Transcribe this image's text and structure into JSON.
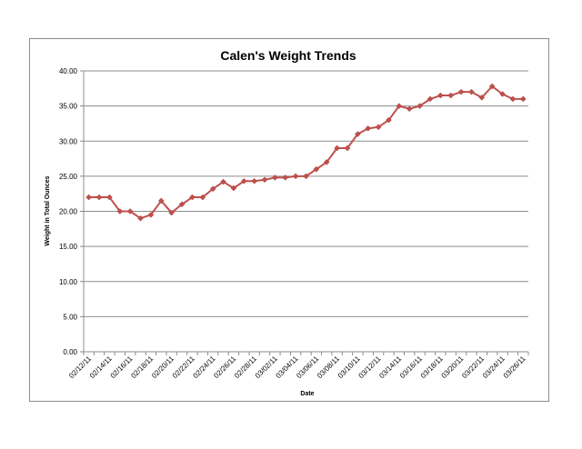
{
  "chart_data": {
    "type": "line",
    "title": "Calen's Weight Trends",
    "xlabel": "Date",
    "ylabel": "Weight in Total Ounces",
    "ylim": [
      0,
      40
    ],
    "yticks": [
      "0.00",
      "5.00",
      "10.00",
      "15.00",
      "20.00",
      "25.00",
      "30.00",
      "35.00",
      "40.00"
    ],
    "x": [
      "02/12/11",
      "02/13/11",
      "02/14/11",
      "02/15/11",
      "02/16/11",
      "02/17/11",
      "02/18/11",
      "02/19/11",
      "02/20/11",
      "02/21/11",
      "02/22/11",
      "02/23/11",
      "02/24/11",
      "02/25/11",
      "02/26/11",
      "02/27/11",
      "02/28/11",
      "03/01/11",
      "03/02/11",
      "03/03/11",
      "03/04/11",
      "03/05/11",
      "03/06/11",
      "03/07/11",
      "03/08/11",
      "03/09/11",
      "03/10/11",
      "03/11/11",
      "03/12/11",
      "03/13/11",
      "03/14/11",
      "03/15/11",
      "03/16/11",
      "03/17/11",
      "03/18/11",
      "03/19/11",
      "03/20/11",
      "03/21/11",
      "03/22/11",
      "03/23/11",
      "03/24/11",
      "03/25/11",
      "03/26/11"
    ],
    "xticks": [
      "02/12/11",
      "02/14/11",
      "02/16/11",
      "02/18/11",
      "02/20/11",
      "02/22/11",
      "02/24/11",
      "02/26/11",
      "02/28/11",
      "03/02/11",
      "03/04/11",
      "03/06/11",
      "03/08/11",
      "03/10/11",
      "03/12/11",
      "03/14/11",
      "03/16/11",
      "03/18/11",
      "03/20/11",
      "03/22/11",
      "03/24/11",
      "03/26/11"
    ],
    "series": [
      {
        "values": [
          22,
          22,
          22,
          20,
          20,
          19,
          19.5,
          21.5,
          19.8,
          21,
          22,
          22,
          23.2,
          24.2,
          23.3,
          24.3,
          24.3,
          24.5,
          24.8,
          24.8,
          25,
          25,
          26,
          27,
          29,
          29,
          31,
          31.8,
          32,
          33,
          35,
          34.6,
          35,
          36,
          36.5,
          36.5,
          37,
          37,
          36.2,
          37.8,
          36.7,
          36,
          36
        ],
        "color": "#c0504d"
      }
    ],
    "grid": true,
    "legend": "none"
  }
}
